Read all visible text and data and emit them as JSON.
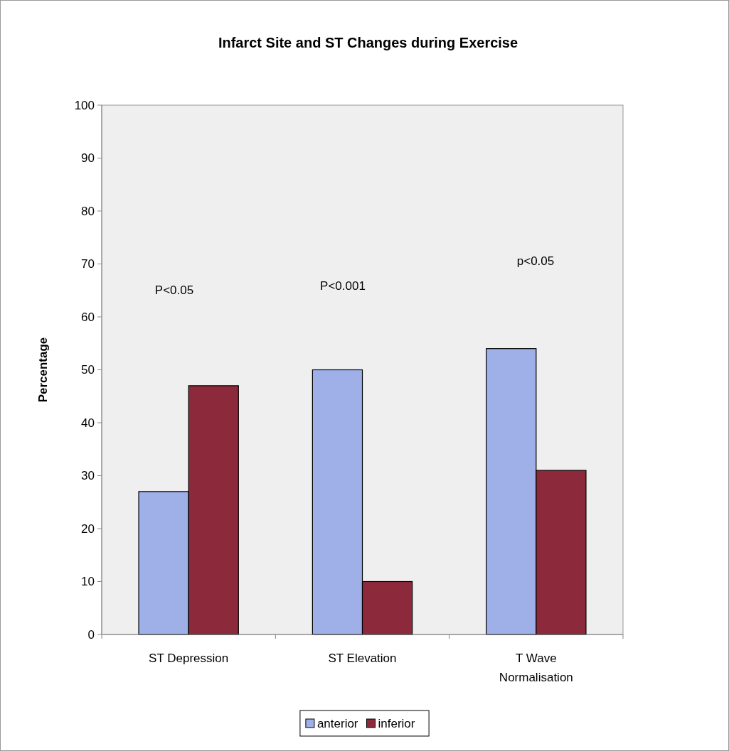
{
  "chart_data": {
    "type": "bar",
    "title": "Infarct Site and ST Changes during Exercise",
    "ylabel": "Percentage",
    "categories": [
      "ST Depression",
      "ST Elevation",
      "T Wave Normalisation"
    ],
    "series": [
      {
        "name": "anterior",
        "color": "#9fb0e8",
        "values": [
          27,
          50,
          54
        ]
      },
      {
        "name": "inferior",
        "color": "#8c2a3c",
        "values": [
          47,
          10,
          31
        ]
      }
    ],
    "ylim": [
      0,
      100
    ],
    "yticks": [
      0,
      10,
      20,
      30,
      40,
      50,
      60,
      70,
      80,
      90,
      100
    ],
    "grid": false,
    "legend": "bottom",
    "annotations": [
      "P<0.05",
      "P<0.001",
      "p<0.05"
    ]
  }
}
